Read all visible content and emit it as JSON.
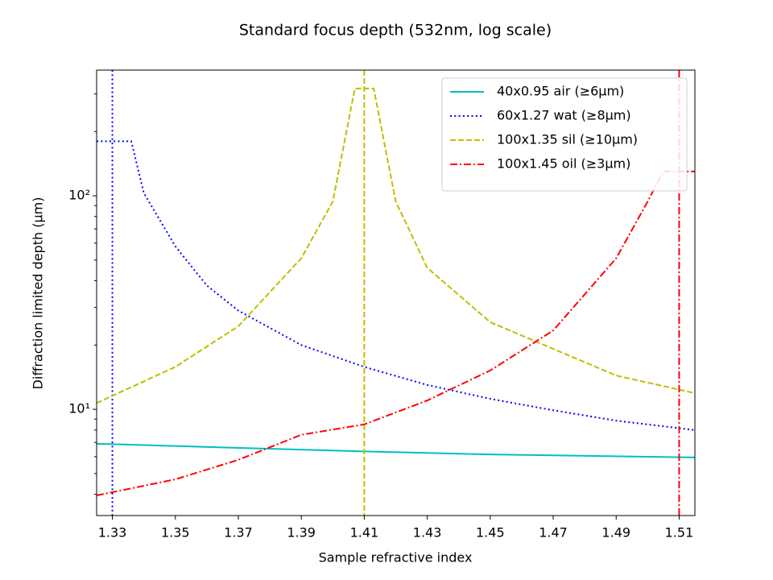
{
  "chart_data": {
    "type": "line",
    "title": "Standard focus depth (532nm, log scale)",
    "xlabel": "Sample refractive index",
    "ylabel": "Diffraction limited depth (μm)",
    "xlim": [
      1.325,
      1.515
    ],
    "ylim": [
      3.18,
      388
    ],
    "yscale": "log",
    "grid": false,
    "legend": "upper right",
    "xticks": [
      1.33,
      1.35,
      1.37,
      1.39,
      1.41,
      1.43,
      1.45,
      1.47,
      1.49,
      1.51
    ],
    "yticks": [
      {
        "value": 10,
        "label": "10¹"
      },
      {
        "value": 100,
        "label": "10²"
      }
    ],
    "yminorticks": [
      4,
      5,
      6,
      7,
      8,
      9,
      20,
      30,
      40,
      50,
      60,
      70,
      80,
      90,
      200,
      300
    ],
    "series": [
      {
        "name": "40x0.95 air (≥6μm)",
        "color": "#00bfbf",
        "linestyle": "solid",
        "x": [
          1.325,
          1.37,
          1.41,
          1.45,
          1.515
        ],
        "values": [
          6.9,
          6.6,
          6.35,
          6.15,
          5.95
        ]
      },
      {
        "name": "60x1.27 wat (≥8μm)",
        "color": "#0000ff",
        "linestyle": "dotted",
        "cutoff": 1.33,
        "x": [
          1.325,
          1.336,
          1.34,
          1.35,
          1.36,
          1.37,
          1.39,
          1.41,
          1.43,
          1.45,
          1.47,
          1.49,
          1.515
        ],
        "values": [
          180,
          180,
          103,
          58,
          38,
          29,
          20,
          15.8,
          13,
          11.2,
          9.9,
          8.85,
          8.0
        ]
      },
      {
        "name": "100x1.35 sil (≥10μm)",
        "color": "#bfbf00",
        "linestyle": "dashed",
        "cutoff": 1.41,
        "x": [
          1.325,
          1.35,
          1.37,
          1.39,
          1.4,
          1.405,
          1.407,
          1.413,
          1.415,
          1.42,
          1.43,
          1.45,
          1.47,
          1.49,
          1.515
        ],
        "values": [
          10.7,
          15.8,
          24.5,
          51,
          94,
          224,
          318,
          318,
          224,
          94,
          46,
          25.6,
          19.2,
          14.4,
          11.9
        ]
      },
      {
        "name": "100x1.45 oil (≥3μm)",
        "color": "#ff0000",
        "linestyle": "dashdot",
        "cutoff": 1.51,
        "x": [
          1.325,
          1.35,
          1.37,
          1.39,
          1.41,
          1.43,
          1.45,
          1.47,
          1.49,
          1.5,
          1.505,
          1.515
        ],
        "values": [
          3.95,
          4.7,
          5.8,
          7.6,
          8.5,
          11,
          15.2,
          23.4,
          51,
          94,
          130,
          130
        ]
      }
    ]
  }
}
